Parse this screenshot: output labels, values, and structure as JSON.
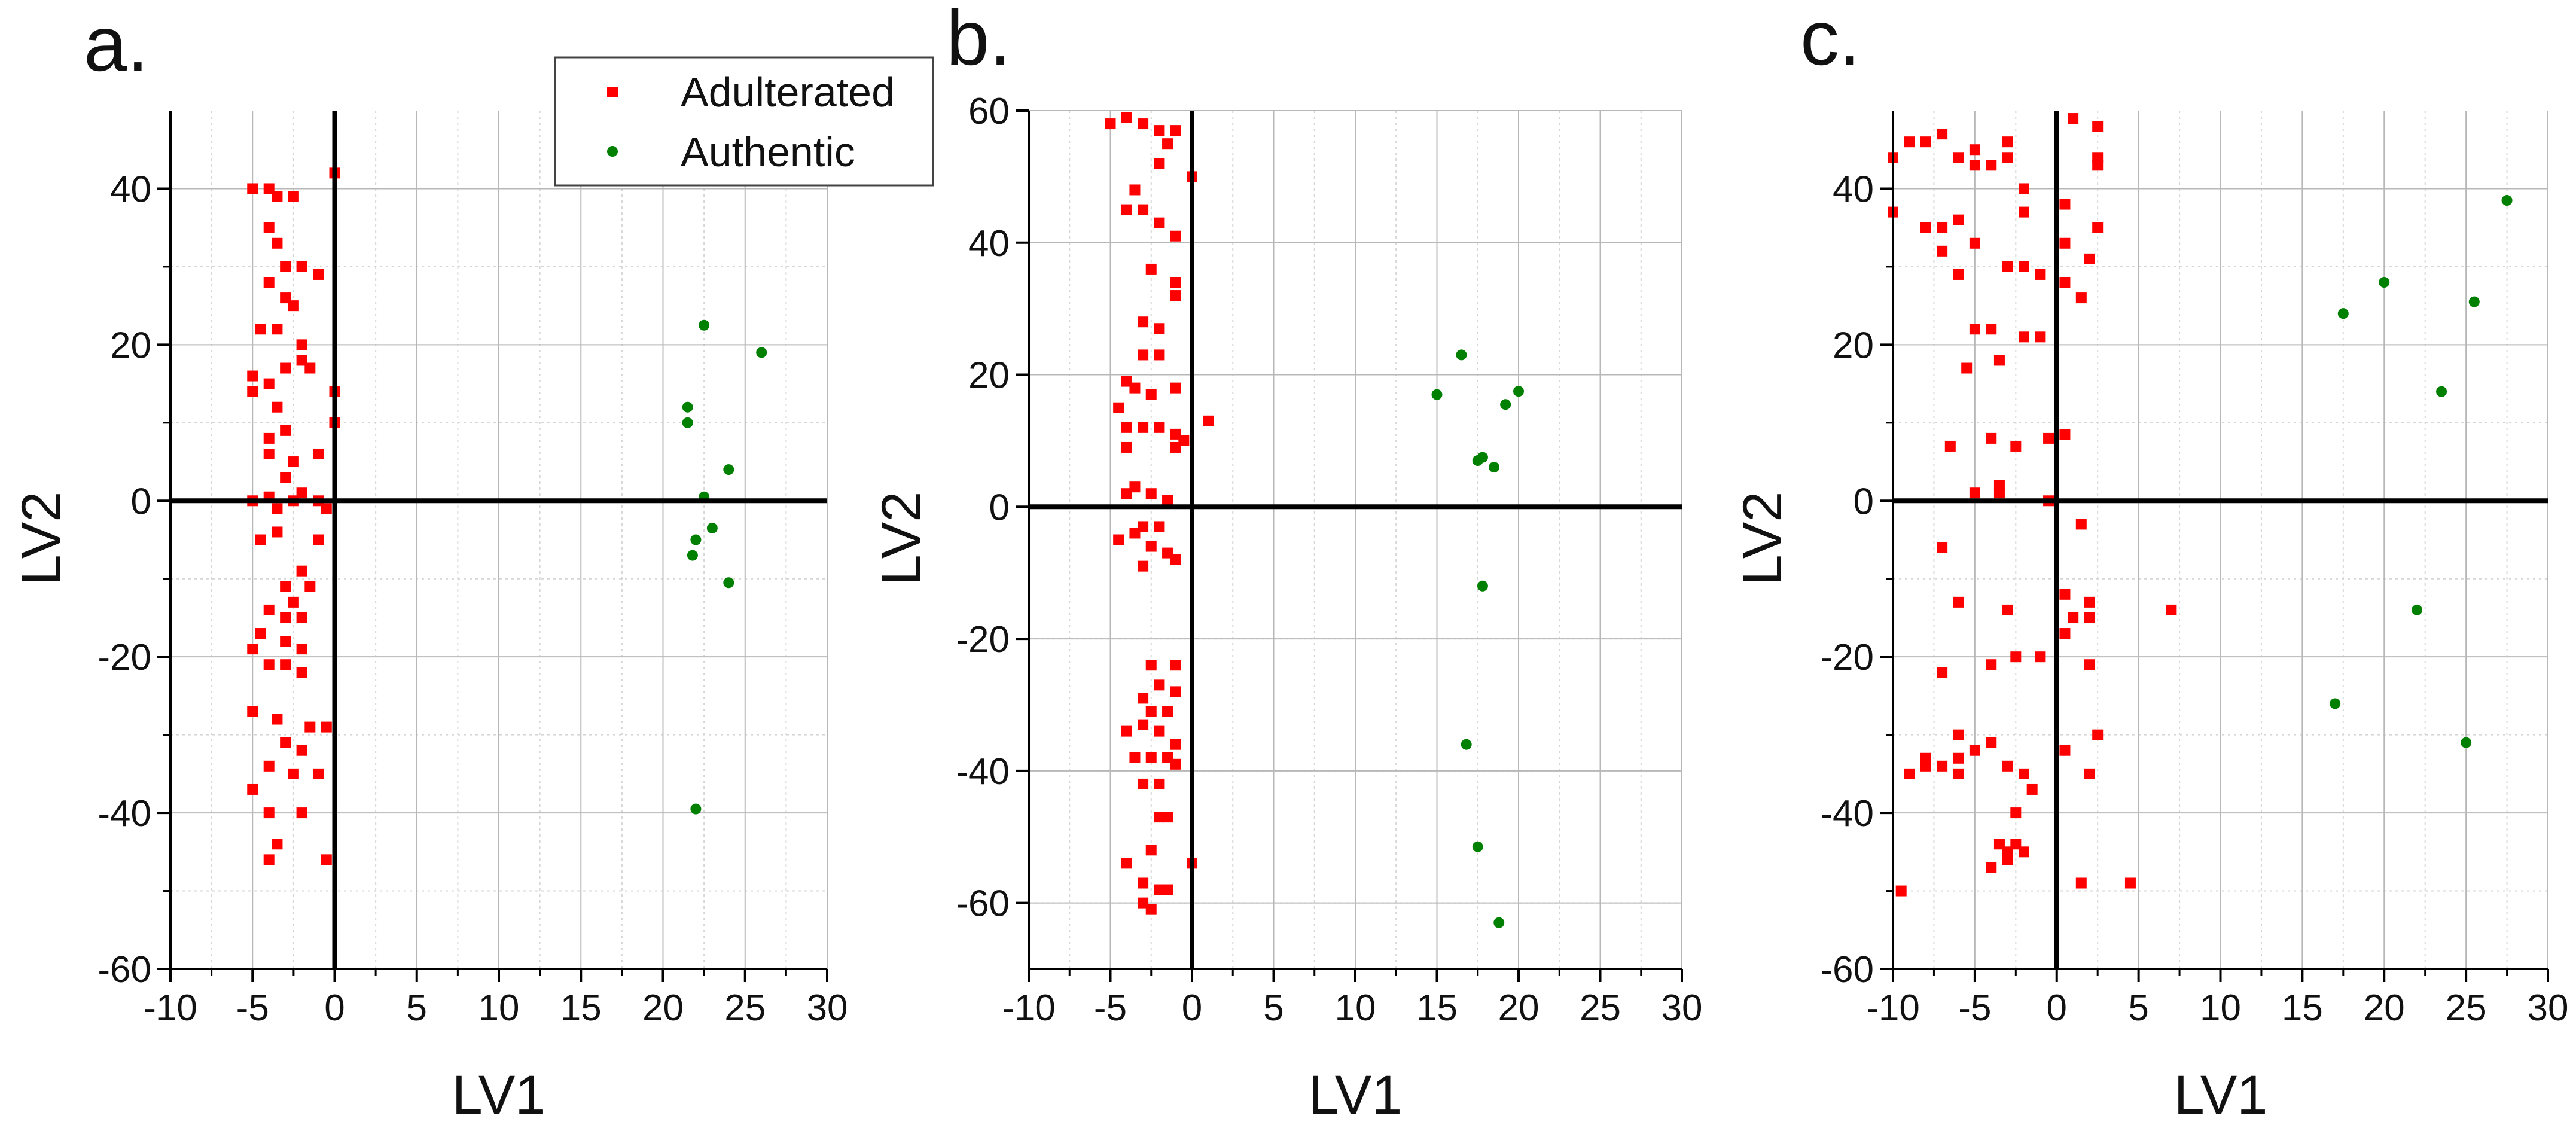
{
  "legend": {
    "items": [
      {
        "label": "Adulterated",
        "color": "#ff0000",
        "marker": "square"
      },
      {
        "label": "Authentic",
        "color": "#008000",
        "marker": "circle"
      }
    ]
  },
  "chart_data": [
    {
      "type": "scatter",
      "panel_label": "a.",
      "xlabel": "LV1",
      "ylabel": "LV2",
      "xlim": [
        -10,
        30
      ],
      "ylim": [
        -60,
        50
      ],
      "xticks": [
        -10,
        -5,
        0,
        5,
        10,
        15,
        20,
        25,
        30
      ],
      "yticks": [
        -60,
        -40,
        -20,
        0,
        20,
        40
      ],
      "grid": true,
      "series": [
        {
          "name": "Adulterated",
          "color": "#ff0000",
          "marker": "square",
          "points": [
            [
              -5,
              40
            ],
            [
              -4,
              40
            ],
            [
              -3.5,
              39
            ],
            [
              -2.5,
              39
            ],
            [
              0,
              42
            ],
            [
              -4,
              35
            ],
            [
              -3.5,
              33
            ],
            [
              -3,
              30
            ],
            [
              -2,
              30
            ],
            [
              -1,
              29
            ],
            [
              -4,
              28
            ],
            [
              -3,
              26
            ],
            [
              -2.5,
              25
            ],
            [
              -3.5,
              22
            ],
            [
              -4.5,
              22
            ],
            [
              -2,
              20
            ],
            [
              -5,
              16
            ],
            [
              -4,
              15
            ],
            [
              -3,
              17
            ],
            [
              -2,
              18
            ],
            [
              -1.5,
              17
            ],
            [
              0,
              14
            ],
            [
              -5,
              14
            ],
            [
              -3.5,
              12
            ],
            [
              0,
              10
            ],
            [
              -4,
              8
            ],
            [
              -3,
              9
            ],
            [
              -2.5,
              5
            ],
            [
              -4,
              6
            ],
            [
              -1,
              6
            ],
            [
              -3,
              3
            ],
            [
              -5,
              0
            ],
            [
              -4,
              0.5
            ],
            [
              -3.5,
              -1
            ],
            [
              -2.5,
              0
            ],
            [
              -2,
              1
            ],
            [
              -1,
              0
            ],
            [
              -0.5,
              -1
            ],
            [
              -4.5,
              -5
            ],
            [
              -3.5,
              -4
            ],
            [
              -1,
              -5
            ],
            [
              -2,
              -9
            ],
            [
              -1.5,
              -11
            ],
            [
              -3,
              -11
            ],
            [
              -2.5,
              -13
            ],
            [
              -4,
              -14
            ],
            [
              -3,
              -15
            ],
            [
              -2,
              -15
            ],
            [
              -4.5,
              -17
            ],
            [
              -5,
              -19
            ],
            [
              -3,
              -18
            ],
            [
              -2,
              -19
            ],
            [
              -4,
              -21
            ],
            [
              -3,
              -21
            ],
            [
              -2,
              -22
            ],
            [
              -5,
              -27
            ],
            [
              -3.5,
              -28
            ],
            [
              -1.5,
              -29
            ],
            [
              -0.5,
              -29
            ],
            [
              -3,
              -31
            ],
            [
              -2,
              -32
            ],
            [
              -4,
              -34
            ],
            [
              -2.5,
              -35
            ],
            [
              -1,
              -35
            ],
            [
              -5,
              -37
            ],
            [
              -4,
              -40
            ],
            [
              -2,
              -40
            ],
            [
              -3.5,
              -44
            ],
            [
              -4,
              -46
            ],
            [
              -0.5,
              -46
            ]
          ]
        },
        {
          "name": "Authentic",
          "color": "#008000",
          "marker": "circle",
          "points": [
            [
              22.5,
              22.5
            ],
            [
              26,
              19
            ],
            [
              21.5,
              12
            ],
            [
              21.5,
              10
            ],
            [
              24,
              4
            ],
            [
              22.5,
              0.5
            ],
            [
              22,
              -5
            ],
            [
              21.8,
              -7
            ],
            [
              23,
              -3.5
            ],
            [
              24,
              -10.5
            ],
            [
              22,
              -39.5
            ]
          ]
        }
      ]
    },
    {
      "type": "scatter",
      "panel_label": "b.",
      "xlabel": "LV1",
      "ylabel": "LV2",
      "xlim": [
        -10,
        30
      ],
      "ylim": [
        -70,
        60
      ],
      "xticks": [
        -10,
        -5,
        0,
        5,
        10,
        15,
        20,
        25,
        30
      ],
      "yticks": [
        -60,
        -40,
        -20,
        0,
        20,
        40,
        60
      ],
      "grid": true,
      "series": [
        {
          "name": "Adulterated",
          "color": "#ff0000",
          "marker": "square",
          "points": [
            [
              -5,
              58
            ],
            [
              -4,
              59
            ],
            [
              -3,
              58
            ],
            [
              -2,
              57
            ],
            [
              -1,
              57
            ],
            [
              -1.5,
              55
            ],
            [
              -2,
              52
            ],
            [
              -3.5,
              48
            ],
            [
              0,
              50
            ],
            [
              -4,
              45
            ],
            [
              -3,
              45
            ],
            [
              -2,
              43
            ],
            [
              -1,
              41
            ],
            [
              -2.5,
              36
            ],
            [
              -1,
              34
            ],
            [
              -1,
              32
            ],
            [
              -3,
              28
            ],
            [
              -2,
              27
            ],
            [
              -3,
              23
            ],
            [
              -2,
              23
            ],
            [
              -4,
              19
            ],
            [
              -3.5,
              18
            ],
            [
              -2.5,
              17
            ],
            [
              -1,
              18
            ],
            [
              1,
              13
            ],
            [
              -4.5,
              15
            ],
            [
              -4,
              12
            ],
            [
              -3,
              12
            ],
            [
              -2,
              12
            ],
            [
              -1,
              11
            ],
            [
              -0.5,
              10
            ],
            [
              -4,
              9
            ],
            [
              -1,
              9
            ],
            [
              -3.5,
              3
            ],
            [
              -4,
              2
            ],
            [
              -2.5,
              2
            ],
            [
              -1.5,
              1
            ],
            [
              -4.5,
              -5
            ],
            [
              -3.5,
              -4
            ],
            [
              -3,
              -3
            ],
            [
              -2,
              -3
            ],
            [
              -2.5,
              -6
            ],
            [
              -1.5,
              -7
            ],
            [
              -3,
              -9
            ],
            [
              -1,
              -8
            ],
            [
              -2.5,
              -24
            ],
            [
              -1,
              -24
            ],
            [
              -2,
              -27
            ],
            [
              -1,
              -28
            ],
            [
              -3,
              -29
            ],
            [
              -2.5,
              -31
            ],
            [
              -1.5,
              -31
            ],
            [
              -4,
              -34
            ],
            [
              -3,
              -33
            ],
            [
              -2,
              -34
            ],
            [
              -1,
              -36
            ],
            [
              -3.5,
              -38
            ],
            [
              -2.5,
              -38
            ],
            [
              -1.5,
              -38
            ],
            [
              -3,
              -42
            ],
            [
              -2,
              -42
            ],
            [
              -1,
              -39
            ],
            [
              -2,
              -47
            ],
            [
              -1.5,
              -47
            ],
            [
              -4,
              -54
            ],
            [
              -2.5,
              -52
            ],
            [
              0,
              -54
            ],
            [
              -3,
              -57
            ],
            [
              -2,
              -58
            ],
            [
              -1.5,
              -58
            ],
            [
              -3,
              -60
            ],
            [
              -2.5,
              -61
            ]
          ]
        },
        {
          "name": "Authentic",
          "color": "#008000",
          "marker": "circle",
          "points": [
            [
              16.5,
              23
            ],
            [
              15,
              17
            ],
            [
              20,
              17.5
            ],
            [
              19.2,
              15.5
            ],
            [
              17.5,
              7
            ],
            [
              17.8,
              7.5
            ],
            [
              18.5,
              6
            ],
            [
              17.8,
              -12
            ],
            [
              16.8,
              -36
            ],
            [
              17.5,
              -51.5
            ],
            [
              18.8,
              -63
            ]
          ]
        }
      ]
    },
    {
      "type": "scatter",
      "panel_label": "c.",
      "xlabel": "LV1",
      "ylabel": "LV2",
      "xlim": [
        -10,
        30
      ],
      "ylim": [
        -60,
        50
      ],
      "xticks": [
        -10,
        -5,
        0,
        5,
        10,
        15,
        20,
        25,
        30
      ],
      "yticks": [
        -60,
        -40,
        -20,
        0,
        20,
        40
      ],
      "grid": true,
      "series": [
        {
          "name": "Adulterated",
          "color": "#ff0000",
          "marker": "square",
          "points": [
            [
              -9,
              46
            ],
            [
              -8,
              46
            ],
            [
              -7,
              47
            ],
            [
              -10,
              37
            ],
            [
              -10,
              44
            ],
            [
              -6,
              44
            ],
            [
              -5,
              45
            ],
            [
              -5,
              43
            ],
            [
              -3,
              46
            ],
            [
              -3,
              44
            ],
            [
              -4,
              43
            ],
            [
              -7,
              35
            ],
            [
              -8,
              35
            ],
            [
              -6,
              36
            ],
            [
              -5,
              33
            ],
            [
              -2,
              40
            ],
            [
              -2,
              37
            ],
            [
              1,
              49
            ],
            [
              2.5,
              48
            ],
            [
              2.5,
              44
            ],
            [
              2.5,
              43
            ],
            [
              -7,
              32
            ],
            [
              -6,
              29
            ],
            [
              -3,
              30
            ],
            [
              -2,
              30
            ],
            [
              0.5,
              38
            ],
            [
              0.5,
              33
            ],
            [
              2,
              31
            ],
            [
              2.5,
              35
            ],
            [
              -1,
              29
            ],
            [
              0.5,
              28
            ],
            [
              1.5,
              26
            ],
            [
              -5,
              22
            ],
            [
              -4,
              22
            ],
            [
              -2,
              21
            ],
            [
              -1,
              21
            ],
            [
              -5.5,
              17
            ],
            [
              -3.5,
              18
            ],
            [
              -0.5,
              8
            ],
            [
              0.5,
              8.5
            ],
            [
              -6.5,
              7
            ],
            [
              -4,
              8
            ],
            [
              -2.5,
              7
            ],
            [
              -3.5,
              2
            ],
            [
              -5,
              1
            ],
            [
              -3.5,
              1
            ],
            [
              -0.5,
              0
            ],
            [
              1.5,
              -3
            ],
            [
              -7,
              -6
            ],
            [
              -6,
              -13
            ],
            [
              -3,
              -14
            ],
            [
              0.5,
              -12
            ],
            [
              1,
              -15
            ],
            [
              2,
              -15
            ],
            [
              2,
              -13
            ],
            [
              7,
              -14
            ],
            [
              -2.5,
              -20
            ],
            [
              -4,
              -21
            ],
            [
              -1,
              -20
            ],
            [
              0.5,
              -17
            ],
            [
              1,
              -15
            ],
            [
              2,
              -21
            ],
            [
              -7,
              -22
            ],
            [
              -6,
              -30
            ],
            [
              -6,
              -33
            ],
            [
              -5,
              -32
            ],
            [
              -4,
              -31
            ],
            [
              -3,
              -34
            ],
            [
              -8,
              -33
            ],
            [
              -9,
              -35
            ],
            [
              -8,
              -34
            ],
            [
              -7,
              -34
            ],
            [
              -6,
              -35
            ],
            [
              -2,
              -35
            ],
            [
              -1.5,
              -37
            ],
            [
              0.5,
              -32
            ],
            [
              2.5,
              -30
            ],
            [
              2,
              -35
            ],
            [
              -2.5,
              -40
            ],
            [
              -3.5,
              -44
            ],
            [
              -2.5,
              -44
            ],
            [
              -3,
              -45
            ],
            [
              -2,
              -45
            ],
            [
              -4,
              -47
            ],
            [
              -3,
              -46
            ],
            [
              -9.5,
              -50
            ],
            [
              1.5,
              -49
            ],
            [
              4.5,
              -49
            ]
          ]
        },
        {
          "name": "Authentic",
          "color": "#008000",
          "marker": "circle",
          "points": [
            [
              27.5,
              38.5
            ],
            [
              20,
              28
            ],
            [
              17.5,
              24
            ],
            [
              25.5,
              25.5
            ],
            [
              23.5,
              14
            ],
            [
              22,
              -14
            ],
            [
              17,
              -26
            ],
            [
              25,
              -31
            ]
          ]
        }
      ]
    }
  ]
}
